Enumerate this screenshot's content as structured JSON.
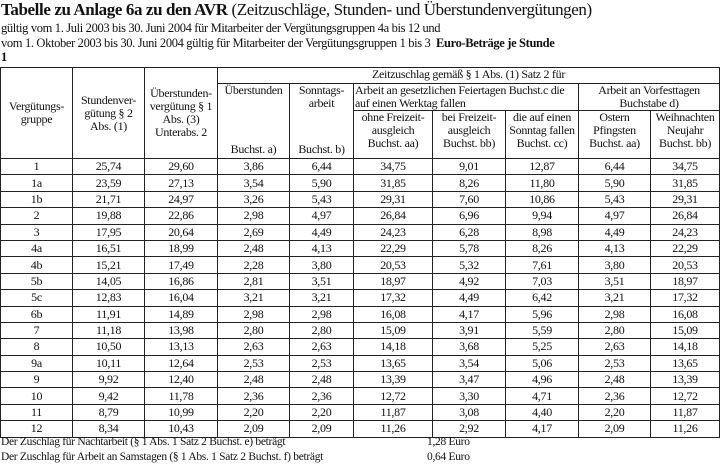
{
  "title_bold": "Tabelle zu Anlage 6a zu den AVR",
  "title_rest": "(Zeitzuschläge, Stunden- und Überstundenvergütungen)",
  "subtitle1": "gültig vom 1. Juli 2003 bis 30. Juni 2004 für Mitarbeiter der Vergütungsgruppen 4a bis 12 und",
  "subtitle2": "vom 1. Oktober 2003 bis 30. Juni 2004 gültig für Mitarbeiter der Vergütungsgruppen 1 bis 3",
  "subtitle2_bold": "Euro-Beträge je Stunde",
  "subtitle3": "1",
  "headers": {
    "group": "Vergütungs-gruppe",
    "hourly": "Stundenver-gütung § 2 Abs. (1)",
    "overtime_pay": "Überstunden-vergütung § 1 Abs. (3) Unterabs. 2",
    "zeitzuschlag": "Zeitzuschlag gemäß § 1 Abs. (1) Satz 2 für",
    "ueberstunden": "Überstunden",
    "ueberstunden_sub": "Buchst. a)",
    "sonntag": "Sonntags-arbeit",
    "sonntag_sub": "Buchst. b)",
    "feiertage": "Arbeit an gesetzlichen Feiertagen Buchst.c die auf einen Werktag fallen",
    "feiertage_aa": "ohne Freizeit-ausgleich Buchst. aa)",
    "feiertage_bb": "bei Freizeit-ausgleich Buchst. bb)",
    "feiertage_cc": "die auf einen Sonntag fallen Buchst. cc)",
    "vorfest": "Arbeit an Vorfesttagen Buchstabe d)",
    "vorfest_aa": "Ostern Pfingsten Buchst. aa)",
    "vorfest_bb": "Weihnachten Neujahr Buchst. bb)"
  },
  "rows": [
    [
      "1",
      "25,74",
      "29,60",
      "3,86",
      "6,44",
      "34,75",
      "9,01",
      "12,87",
      "6,44",
      "34,75"
    ],
    [
      "1a",
      "23,59",
      "27,13",
      "3,54",
      "5,90",
      "31,85",
      "8,26",
      "11,80",
      "5,90",
      "31,85"
    ],
    [
      "1b",
      "21,71",
      "24,97",
      "3,26",
      "5,43",
      "29,31",
      "7,60",
      "10,86",
      "5,43",
      "29,31"
    ],
    [
      "2",
      "19,88",
      "22,86",
      "2,98",
      "4,97",
      "26,84",
      "6,96",
      "9,94",
      "4,97",
      "26,84"
    ],
    [
      "3",
      "17,95",
      "20,64",
      "2,69",
      "4,49",
      "24,23",
      "6,28",
      "8,98",
      "4,49",
      "24,23"
    ],
    [
      "4a",
      "16,51",
      "18,99",
      "2,48",
      "4,13",
      "22,29",
      "5,78",
      "8,26",
      "4,13",
      "22,29"
    ],
    [
      "4b",
      "15,21",
      "17,49",
      "2,28",
      "3,80",
      "20,53",
      "5,32",
      "7,61",
      "3,80",
      "20,53"
    ],
    [
      "5b",
      "14,05",
      "16,86",
      "2,81",
      "3,51",
      "18,97",
      "4,92",
      "7,03",
      "3,51",
      "18,97"
    ],
    [
      "5c",
      "12,83",
      "16,04",
      "3,21",
      "3,21",
      "17,32",
      "4,49",
      "6,42",
      "3,21",
      "17,32"
    ],
    [
      "6b",
      "11,91",
      "14,89",
      "2,98",
      "2,98",
      "16,08",
      "4,17",
      "5,96",
      "2,98",
      "16,08"
    ],
    [
      "7",
      "11,18",
      "13,98",
      "2,80",
      "2,80",
      "15,09",
      "3,91",
      "5,59",
      "2,80",
      "15,09"
    ],
    [
      "8",
      "10,50",
      "13,13",
      "2,63",
      "2,63",
      "14,18",
      "3,68",
      "5,25",
      "2,63",
      "14,18"
    ],
    [
      "9a",
      "10,11",
      "12,64",
      "2,53",
      "2,53",
      "13,65",
      "3,54",
      "5,06",
      "2,53",
      "13,65"
    ],
    [
      "9",
      "9,92",
      "12,40",
      "2,48",
      "2,48",
      "13,39",
      "3,47",
      "4,96",
      "2,48",
      "13,39"
    ],
    [
      "10",
      "9,42",
      "11,78",
      "2,36",
      "2,36",
      "12,72",
      "3,30",
      "4,71",
      "2,36",
      "12,72"
    ],
    [
      "11",
      "8,79",
      "10,99",
      "2,20",
      "2,20",
      "11,87",
      "3,08",
      "4,40",
      "2,20",
      "11,87"
    ],
    [
      "12",
      "8,34",
      "10,43",
      "2,09",
      "2,09",
      "11,26",
      "2,92",
      "4,17",
      "2,09",
      "11,26"
    ]
  ],
  "footnotes": [
    {
      "text": "Der Zuschlag für Nachtarbeit (§ 1 Abs. 1 Satz 2 Buchst. e) beträgt",
      "value": "1,28 Euro"
    },
    {
      "text": "Der Zuschlag für Arbeit an Samstagen (§ 1 Abs. 1 Satz 2 Buchst. f) beträgt",
      "value": "0,64 Euro"
    }
  ]
}
